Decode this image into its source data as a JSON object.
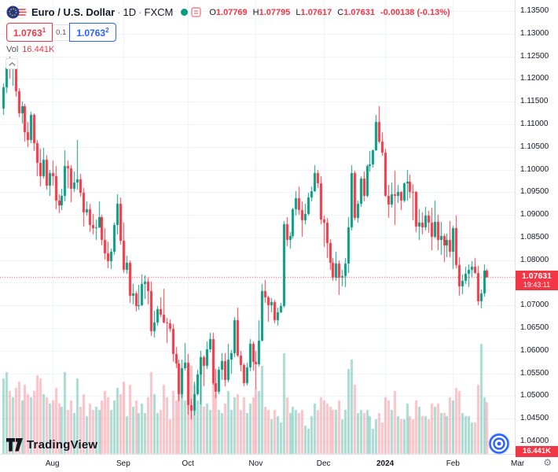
{
  "header": {
    "symbol": "Euro / U.S. Dollar",
    "sep": "·",
    "timeframe": "1D",
    "exchange": "FXCM",
    "ohlc": {
      "o_label": "O",
      "o": "1.07769",
      "h_label": "H",
      "h": "1.07795",
      "l_label": "L",
      "l": "1.07617",
      "c_label": "C",
      "c": "1.07631",
      "change": "-0.00138 (-0.13%)"
    },
    "sell": {
      "price": "1.0763",
      "sup": "1"
    },
    "spread": "0.1",
    "buy": {
      "price": "1.0763",
      "sup": "2"
    },
    "vol_label": "Vol",
    "vol_value": "16.441K"
  },
  "price_label": {
    "price": "1.07631",
    "countdown": "19:43:11"
  },
  "volume_label": {
    "value": "16.441K"
  },
  "footer": {
    "logo_text": "TradingView"
  },
  "icons": {
    "gear": "⚙"
  },
  "colors": {
    "up": "#089981",
    "down": "#f23645",
    "vol_up": "rgba(8,153,129,0.35)",
    "vol_down": "rgba(242,54,69,0.30)",
    "grid": "#eef1f7",
    "axis_text": "#131722",
    "accent_blue": "#2962ff"
  },
  "chart_data": {
    "type": "candlestick",
    "title": "Euro / U.S. Dollar · 1D · FXCM",
    "symbol": "EUR/USD",
    "timeframe": "1D",
    "exchange": "FXCM",
    "ylim": [
      1.04,
      1.135
    ],
    "volume_unit": "K",
    "current": {
      "open": 1.07769,
      "high": 1.07795,
      "low": 1.07617,
      "close": 1.07631,
      "change": -0.00138,
      "change_pct": -0.13,
      "volume_k": 16.441
    },
    "price_ticks": [
      "1.13500",
      "1.13000",
      "1.12500",
      "1.12000",
      "1.11500",
      "1.11000",
      "1.10500",
      "1.10000",
      "1.09500",
      "1.09000",
      "1.08500",
      "1.08000",
      "1.07500",
      "1.07000",
      "1.06500",
      "1.06000",
      "1.05500",
      "1.05000",
      "1.04500",
      "1.04000"
    ],
    "time_ticks": [
      {
        "label": "Aug",
        "i": 16
      },
      {
        "label": "Sep",
        "i": 39
      },
      {
        "label": "Oct",
        "i": 60
      },
      {
        "label": "Nov",
        "i": 82
      },
      {
        "label": "Dec",
        "i": 104
      },
      {
        "label": "2024",
        "i": 124,
        "year": true
      },
      {
        "label": "Feb",
        "i": 146
      },
      {
        "label": "Mar",
        "i": 167
      }
    ],
    "candles_format": [
      "open",
      "high",
      "low",
      "close",
      "volume_k"
    ],
    "candles": [
      [
        1.1135,
        1.119,
        1.112,
        1.1182,
        24
      ],
      [
        1.1182,
        1.1245,
        1.117,
        1.1228,
        26
      ],
      [
        1.1228,
        1.1249,
        1.12,
        1.1224,
        20
      ],
      [
        1.1224,
        1.124,
        1.1185,
        1.1236,
        18
      ],
      [
        1.1236,
        1.1242,
        1.116,
        1.1172,
        21
      ],
      [
        1.1172,
        1.118,
        1.1115,
        1.1125,
        23
      ],
      [
        1.1125,
        1.115,
        1.1102,
        1.114,
        17
      ],
      [
        1.114,
        1.1145,
        1.1062,
        1.1082,
        22
      ],
      [
        1.1082,
        1.1105,
        1.105,
        1.1065,
        19
      ],
      [
        1.1065,
        1.1128,
        1.1058,
        1.112,
        18
      ],
      [
        1.112,
        1.1125,
        1.104,
        1.1058,
        20
      ],
      [
        1.1058,
        1.1065,
        1.0985,
        1.1015,
        25
      ],
      [
        1.1015,
        1.1046,
        1.0962,
        1.0985,
        24
      ],
      [
        1.0985,
        1.1048,
        1.098,
        1.1022,
        19
      ],
      [
        1.1022,
        1.1032,
        1.0955,
        1.0965,
        18
      ],
      [
        1.0965,
        1.1,
        1.0942,
        1.0992,
        16
      ],
      [
        1.0992,
        1.102,
        1.0965,
        1.0985,
        17
      ],
      [
        1.0985,
        1.1008,
        1.0912,
        1.0932,
        21
      ],
      [
        1.0932,
        1.0945,
        1.0903,
        1.0921,
        16
      ],
      [
        1.0921,
        1.0958,
        1.091,
        1.0942,
        15
      ],
      [
        1.0942,
        1.1042,
        1.093,
        1.1008,
        26
      ],
      [
        1.1008,
        1.102,
        1.096,
        1.1002,
        14
      ],
      [
        1.1002,
        1.101,
        1.0928,
        1.0958,
        17
      ],
      [
        1.0958,
        1.0995,
        1.095,
        1.0972,
        13
      ],
      [
        1.0972,
        1.1065,
        1.0955,
        1.0978,
        24
      ],
      [
        1.0978,
        1.099,
        1.094,
        1.0948,
        15
      ],
      [
        1.0948,
        1.096,
        1.0874,
        1.0905,
        19
      ],
      [
        1.0905,
        1.093,
        1.0899,
        1.0912,
        12
      ],
      [
        1.0912,
        1.0925,
        1.0862,
        1.0878,
        16
      ],
      [
        1.0878,
        1.0902,
        1.0856,
        1.087,
        14
      ],
      [
        1.087,
        1.089,
        1.0845,
        1.0872,
        15
      ],
      [
        1.0872,
        1.093,
        1.087,
        1.0895,
        14
      ],
      [
        1.0895,
        1.09,
        1.0832,
        1.0845,
        17
      ],
      [
        1.0845,
        1.087,
        1.0802,
        1.0815,
        20
      ],
      [
        1.0815,
        1.0842,
        1.0782,
        1.0798,
        18
      ],
      [
        1.0798,
        1.0825,
        1.078,
        1.0818,
        14
      ],
      [
        1.0818,
        1.0882,
        1.0812,
        1.0878,
        17
      ],
      [
        1.0878,
        1.0945,
        1.0856,
        1.0925,
        21
      ],
      [
        1.0925,
        1.0938,
        1.0835,
        1.0843,
        19
      ],
      [
        1.0843,
        1.0882,
        1.0772,
        1.0778,
        23
      ],
      [
        1.0778,
        1.081,
        1.077,
        1.0795,
        12
      ],
      [
        1.0795,
        1.08,
        1.0705,
        1.0722,
        22
      ],
      [
        1.0722,
        1.0748,
        1.0702,
        1.0726,
        15
      ],
      [
        1.0726,
        1.0732,
        1.0686,
        1.0698,
        17
      ],
      [
        1.0698,
        1.0745,
        1.069,
        1.07,
        13
      ],
      [
        1.07,
        1.0768,
        1.0698,
        1.0748,
        16
      ],
      [
        1.0748,
        1.0766,
        1.0715,
        1.0752,
        13
      ],
      [
        1.0752,
        1.0762,
        1.0702,
        1.0732,
        18
      ],
      [
        1.0732,
        1.0752,
        1.0632,
        1.0643,
        26
      ],
      [
        1.0643,
        1.0688,
        1.063,
        1.0662,
        19
      ],
      [
        1.0662,
        1.0698,
        1.0656,
        1.0692,
        13
      ],
      [
        1.0692,
        1.0718,
        1.0675,
        1.068,
        14
      ],
      [
        1.068,
        1.0737,
        1.066,
        1.0662,
        22
      ],
      [
        1.0662,
        1.0672,
        1.0617,
        1.0661,
        18
      ],
      [
        1.0661,
        1.067,
        1.0642,
        1.0648,
        11
      ],
      [
        1.0648,
        1.0658,
        1.0575,
        1.0592,
        20
      ],
      [
        1.0592,
        1.0609,
        1.0562,
        1.0572,
        17
      ],
      [
        1.0572,
        1.058,
        1.0488,
        1.0504,
        25
      ],
      [
        1.0504,
        1.058,
        1.0495,
        1.0562,
        21
      ],
      [
        1.0562,
        1.0617,
        1.0556,
        1.0573,
        17
      ],
      [
        1.0573,
        1.0592,
        1.0459,
        1.048,
        27
      ],
      [
        1.048,
        1.0494,
        1.0448,
        1.0468,
        28
      ],
      [
        1.0468,
        1.0532,
        1.0458,
        1.0505,
        22
      ],
      [
        1.0505,
        1.0558,
        1.05,
        1.0548,
        17
      ],
      [
        1.0548,
        1.06,
        1.0482,
        1.0586,
        26
      ],
      [
        1.0586,
        1.059,
        1.0522,
        1.0567,
        15
      ],
      [
        1.0567,
        1.062,
        1.056,
        1.0603,
        16
      ],
      [
        1.0603,
        1.064,
        1.0596,
        1.0625,
        14
      ],
      [
        1.0625,
        1.0639,
        1.0525,
        1.0529,
        24
      ],
      [
        1.0529,
        1.056,
        1.0495,
        1.051,
        19
      ],
      [
        1.051,
        1.0565,
        1.0505,
        1.0558,
        14
      ],
      [
        1.0558,
        1.0595,
        1.0535,
        1.0577,
        13
      ],
      [
        1.0577,
        1.0595,
        1.0522,
        1.0536,
        16
      ],
      [
        1.0536,
        1.0616,
        1.053,
        1.058,
        20
      ],
      [
        1.058,
        1.0602,
        1.055,
        1.0594,
        14
      ],
      [
        1.0594,
        1.0675,
        1.0585,
        1.0668,
        18
      ],
      [
        1.0668,
        1.0695,
        1.0585,
        1.059,
        19
      ],
      [
        1.059,
        1.06,
        1.0555,
        1.0568,
        14
      ],
      [
        1.0568,
        1.0572,
        1.0522,
        1.0529,
        18
      ],
      [
        1.0529,
        1.0573,
        1.0524,
        1.0563,
        13
      ],
      [
        1.0563,
        1.0625,
        1.0555,
        1.0615,
        16
      ],
      [
        1.0615,
        1.062,
        1.0557,
        1.0575,
        18
      ],
      [
        1.0575,
        1.06,
        1.0516,
        1.057,
        21
      ],
      [
        1.057,
        1.0668,
        1.0565,
        1.0622,
        20
      ],
      [
        1.0622,
        1.0747,
        1.062,
        1.0731,
        28
      ],
      [
        1.0731,
        1.0756,
        1.0705,
        1.0718,
        15
      ],
      [
        1.0718,
        1.0722,
        1.0664,
        1.07,
        14
      ],
      [
        1.07,
        1.0716,
        1.0685,
        1.0708,
        11
      ],
      [
        1.0708,
        1.0712,
        1.066,
        1.0668,
        14
      ],
      [
        1.0668,
        1.0695,
        1.0656,
        1.0685,
        12
      ],
      [
        1.0685,
        1.0705,
        1.0683,
        1.0699,
        10
      ],
      [
        1.0699,
        1.0887,
        1.0695,
        1.0879,
        32
      ],
      [
        1.0879,
        1.0895,
        1.083,
        1.0845,
        18
      ],
      [
        1.0845,
        1.0862,
        1.0825,
        1.0853,
        13
      ],
      [
        1.0853,
        1.0915,
        1.0848,
        1.0913,
        15
      ],
      [
        1.0913,
        1.0952,
        1.0899,
        1.0937,
        14
      ],
      [
        1.0937,
        1.0962,
        1.09,
        1.091,
        13
      ],
      [
        1.091,
        1.093,
        1.0852,
        1.0888,
        14
      ],
      [
        1.0888,
        1.0925,
        1.088,
        1.0902,
        9
      ],
      [
        1.0902,
        1.0948,
        1.0898,
        1.0938,
        8
      ],
      [
        1.0938,
        1.0962,
        1.093,
        1.0953,
        12
      ],
      [
        1.0953,
        1.1009,
        1.095,
        1.0992,
        16
      ],
      [
        1.0992,
        1.1,
        1.096,
        1.097,
        14
      ],
      [
        1.097,
        1.0985,
        1.0879,
        1.0889,
        18
      ],
      [
        1.0889,
        1.0898,
        1.0829,
        1.0882,
        17
      ],
      [
        1.0882,
        1.0894,
        1.0804,
        1.0838,
        16
      ],
      [
        1.0838,
        1.0846,
        1.0778,
        1.0795,
        15
      ],
      [
        1.0795,
        1.0805,
        1.0755,
        1.0762,
        14
      ],
      [
        1.0762,
        1.0818,
        1.0755,
        1.0792,
        14
      ],
      [
        1.0792,
        1.08,
        1.0723,
        1.0761,
        17
      ],
      [
        1.0761,
        1.0778,
        1.0742,
        1.0765,
        11
      ],
      [
        1.0765,
        1.0804,
        1.0741,
        1.0793,
        14
      ],
      [
        1.0793,
        1.0895,
        1.0772,
        1.0873,
        27
      ],
      [
        1.0873,
        1.1009,
        1.0866,
        1.0992,
        30
      ],
      [
        1.0992,
        1.0998,
        1.0888,
        1.0894,
        22
      ],
      [
        1.0894,
        1.0932,
        1.0883,
        1.0924,
        13
      ],
      [
        1.0924,
        1.0985,
        1.0918,
        1.098,
        14
      ],
      [
        1.098,
        1.0995,
        1.093,
        1.0941,
        13
      ],
      [
        1.0941,
        1.1012,
        1.0938,
        1.1008,
        14
      ],
      [
        1.1008,
        1.104,
        1.0995,
        1.1012,
        12
      ],
      [
        1.1012,
        1.1045,
        1.1005,
        1.1042,
        8
      ],
      [
        1.1042,
        1.112,
        1.104,
        1.1105,
        11
      ],
      [
        1.1105,
        1.1139,
        1.1058,
        1.1061,
        13
      ],
      [
        1.1061,
        1.1082,
        1.103,
        1.1038,
        10
      ],
      [
        1.1038,
        1.1046,
        1.094,
        1.0942,
        18
      ],
      [
        1.0942,
        1.0967,
        1.0893,
        1.0922,
        17
      ],
      [
        1.0922,
        1.0972,
        1.0916,
        1.0945,
        14
      ],
      [
        1.0945,
        1.0998,
        1.0877,
        1.0941,
        20
      ],
      [
        1.0941,
        1.0966,
        1.0926,
        1.095,
        12
      ],
      [
        1.095,
        1.0952,
        1.091,
        1.0932,
        11
      ],
      [
        1.0932,
        1.0972,
        1.0928,
        1.097,
        11
      ],
      [
        1.097,
        1.0999,
        1.0932,
        1.0973,
        16
      ],
      [
        1.0973,
        1.0988,
        1.0937,
        1.0951,
        12
      ],
      [
        1.0951,
        1.0968,
        1.0888,
        1.095,
        11
      ],
      [
        1.095,
        1.0952,
        1.0862,
        1.0875,
        17
      ],
      [
        1.0875,
        1.0912,
        1.0845,
        1.0882,
        15
      ],
      [
        1.0882,
        1.0906,
        1.0856,
        1.0872,
        12
      ],
      [
        1.0872,
        1.0918,
        1.0866,
        1.0898,
        12
      ],
      [
        1.0898,
        1.0908,
        1.086,
        1.0882,
        11
      ],
      [
        1.0882,
        1.0915,
        1.0822,
        1.0852,
        16
      ],
      [
        1.0852,
        1.0932,
        1.0848,
        1.0885,
        15
      ],
      [
        1.0885,
        1.0901,
        1.0822,
        1.0845,
        16
      ],
      [
        1.0845,
        1.0885,
        1.0812,
        1.0854,
        13
      ],
      [
        1.0854,
        1.0858,
        1.0796,
        1.0832,
        13
      ],
      [
        1.0832,
        1.0858,
        1.0806,
        1.0844,
        12
      ],
      [
        1.0844,
        1.0887,
        1.0806,
        1.0818,
        18
      ],
      [
        1.0818,
        1.0876,
        1.078,
        1.0871,
        17
      ],
      [
        1.0871,
        1.0898,
        1.0782,
        1.0789,
        21
      ],
      [
        1.0789,
        1.0806,
        1.0722,
        1.0742,
        20
      ],
      [
        1.0742,
        1.0768,
        1.0724,
        1.0755,
        13
      ],
      [
        1.0755,
        1.0786,
        1.0748,
        1.077,
        12
      ],
      [
        1.077,
        1.079,
        1.0741,
        1.0778,
        12
      ],
      [
        1.0778,
        1.0798,
        1.0762,
        1.0785,
        10
      ],
      [
        1.0785,
        1.0805,
        1.077,
        1.0772,
        10
      ],
      [
        1.0772,
        1.0788,
        1.07,
        1.0709,
        22
      ],
      [
        1.0709,
        1.0735,
        1.0694,
        1.0727,
        35
      ],
      [
        1.0727,
        1.079,
        1.0719,
        1.07769,
        18
      ],
      [
        1.07769,
        1.07795,
        1.07617,
        1.07631,
        16.441
      ]
    ]
  }
}
